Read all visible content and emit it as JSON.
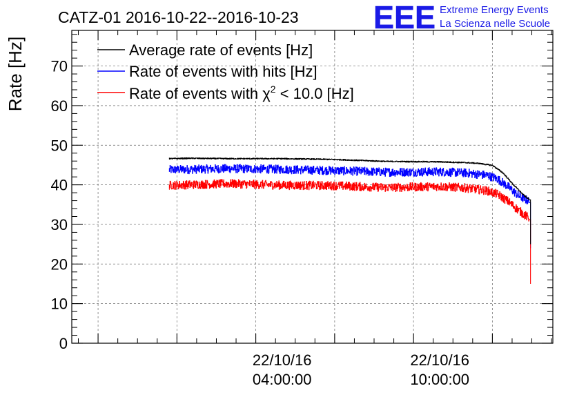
{
  "chart_data": {
    "type": "line",
    "title": "CATZ-01 2016-10-22--2016-10-23",
    "ylabel": "Rate [Hz]",
    "xlabel": "",
    "ylim": [
      0,
      79
    ],
    "xlim_hours": [
      -4.0,
      14.3
    ],
    "yticks": [
      "0",
      "10",
      "20",
      "30",
      "40",
      "50",
      "60",
      "70"
    ],
    "xtick_labels": [
      {
        "hour": 4,
        "line1": "22/10/16",
        "line2": "04:00:00"
      },
      {
        "hour": 10,
        "line1": "22/10/16",
        "line2": "10:00:00"
      }
    ],
    "grid": true,
    "legend_position": "top-left",
    "series": [
      {
        "name": "Average rate of events [Hz]",
        "color": "#000000",
        "noise": 0.15,
        "points": [
          [
            -0.3,
            46.6
          ],
          [
            0.5,
            46.7
          ],
          [
            2.0,
            46.6
          ],
          [
            4.0,
            46.6
          ],
          [
            6.0,
            46.4
          ],
          [
            8.0,
            45.9
          ],
          [
            10.0,
            45.8
          ],
          [
            11.0,
            45.6
          ],
          [
            11.5,
            45.4
          ],
          [
            12.0,
            44.9
          ],
          [
            12.4,
            43.0
          ],
          [
            12.8,
            40.0
          ],
          [
            13.2,
            37.3
          ],
          [
            13.4,
            36.3
          ],
          [
            13.45,
            25.0
          ]
        ]
      },
      {
        "name": "Rate of events with hits [Hz]",
        "color": "#0000ff",
        "noise": 1.1,
        "points": [
          [
            -0.3,
            43.8
          ],
          [
            2.0,
            44.1
          ],
          [
            4.0,
            43.9
          ],
          [
            6.0,
            43.6
          ],
          [
            8.0,
            43.2
          ],
          [
            10.0,
            43.3
          ],
          [
            11.0,
            43.0
          ],
          [
            11.8,
            42.4
          ],
          [
            12.2,
            41.5
          ],
          [
            12.6,
            39.5
          ],
          [
            13.0,
            37.2
          ],
          [
            13.4,
            35.8
          ],
          [
            13.45,
            24.0
          ]
        ]
      },
      {
        "name": "Rate of events with χ² < 10.0 [Hz]",
        "color": "#ff0000",
        "noise": 1.1,
        "points": [
          [
            -0.3,
            39.9
          ],
          [
            2.0,
            40.3
          ],
          [
            4.0,
            39.9
          ],
          [
            6.0,
            39.8
          ],
          [
            8.0,
            39.3
          ],
          [
            10.0,
            39.6
          ],
          [
            11.0,
            39.2
          ],
          [
            11.8,
            38.5
          ],
          [
            12.2,
            37.6
          ],
          [
            12.6,
            35.8
          ],
          [
            13.0,
            33.5
          ],
          [
            13.4,
            31.5
          ],
          [
            13.45,
            15.0
          ]
        ]
      }
    ],
    "legend": {
      "avg": {
        "label": "Average rate of events [Hz]"
      },
      "hits": {
        "label": "Rate of events with hits [Hz]"
      },
      "chi": {
        "prefix": "Rate of events with ",
        "chi": "χ",
        "sup": "2",
        "suffix": " < 10.0 [Hz]"
      }
    }
  },
  "logo": {
    "text": "EEE",
    "line1": "Extreme Energy Events",
    "line2": "La Scienza nelle Scuole",
    "color": "#1a1ae6"
  }
}
